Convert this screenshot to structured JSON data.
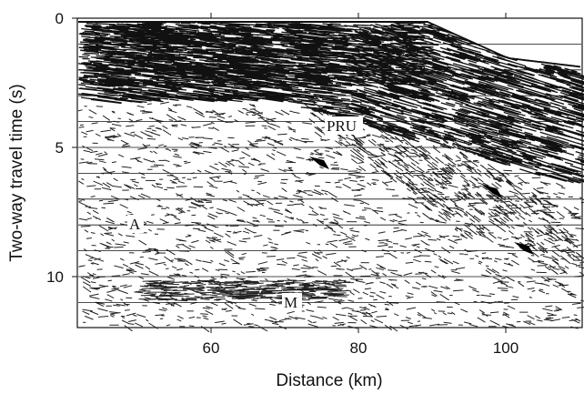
{
  "figure": {
    "ylabel": "Two-way travel time (s)",
    "xlabel": "Distance (km)",
    "x_ticks": [
      "60",
      "80",
      "100"
    ],
    "y_ticks": [
      "0",
      "5",
      "10"
    ],
    "x_range_km": [
      42,
      112
    ],
    "y_range_s": [
      0,
      12
    ],
    "annotations": [
      "PRU",
      "A",
      "M"
    ]
  }
}
